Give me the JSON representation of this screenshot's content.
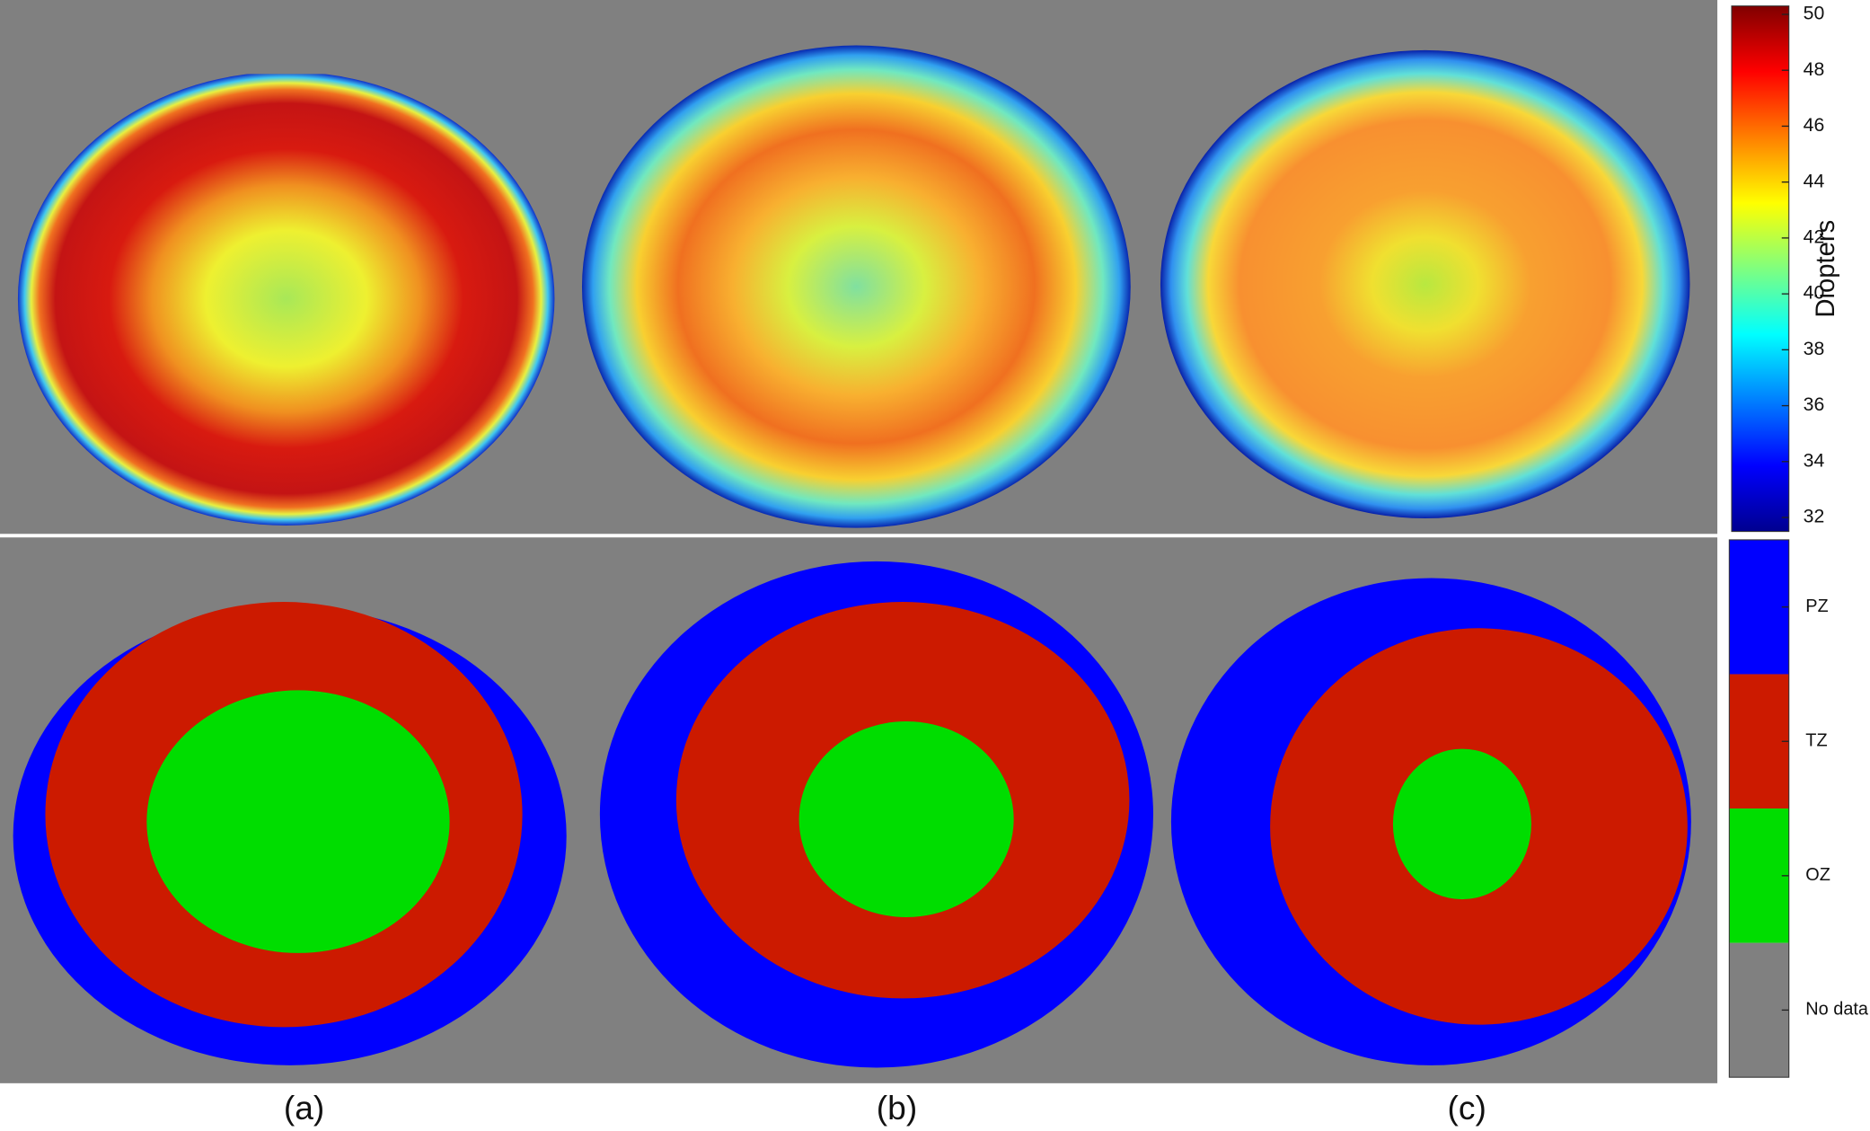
{
  "chart_data": {
    "type": "heatmap",
    "panels": [
      "(a)",
      "(b)",
      "(c)"
    ],
    "colorbar": {
      "label": "Diopters",
      "ylim": [
        31.5,
        50.3
      ],
      "yticks": [
        32,
        34,
        36,
        38,
        40,
        42,
        44,
        46,
        48,
        50
      ]
    },
    "zones": {
      "labels": [
        "PZ",
        "TZ",
        "OZ",
        "No data"
      ],
      "colors": [
        "#0000ff",
        "#cc1a00",
        "#00dd00",
        "#808080"
      ]
    }
  }
}
